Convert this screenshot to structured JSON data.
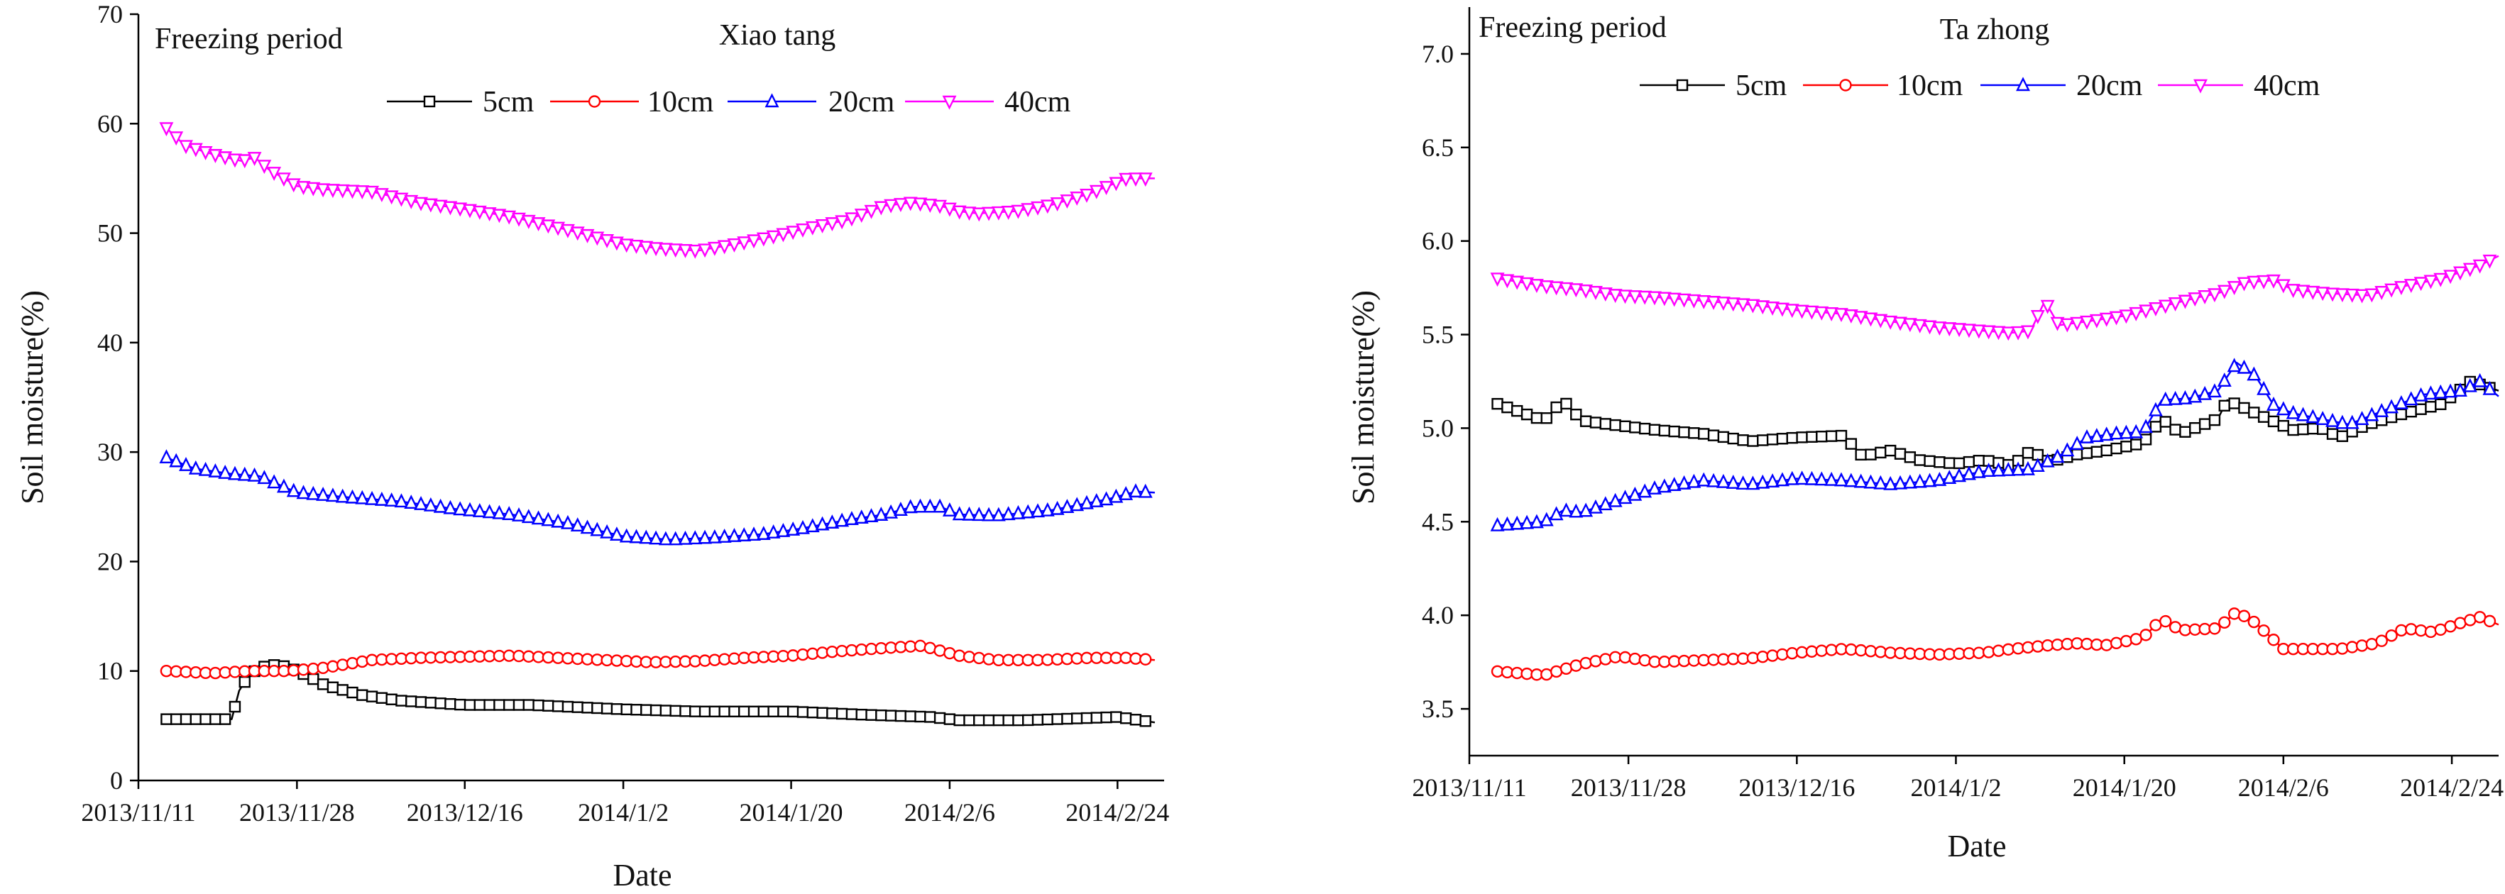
{
  "chart_data": [
    {
      "type": "line",
      "title": "Xiao tang",
      "annotation": "Freezing period",
      "xlabel": "Date",
      "ylabel": "Soil moisture(%)",
      "ylim": [
        0,
        70
      ],
      "yticks": [
        "0",
        "10",
        "20",
        "30",
        "40",
        "50",
        "60",
        "70"
      ],
      "xticks": [
        "2013/11/11",
        "2013/11/28",
        "2013/12/16",
        "2014/1/2",
        "2014/1/20",
        "2014/2/6",
        "2014/2/24"
      ],
      "xlim_days": [
        0,
        110
      ],
      "xtick_days": [
        0,
        17,
        35,
        52,
        70,
        87,
        105
      ],
      "grid": false,
      "legend": "top",
      "series": [
        {
          "name": "5cm",
          "color": "#000000",
          "marker": "square",
          "x_days": [
            3,
            7,
            10,
            10.8,
            12,
            14,
            16,
            18,
            20,
            24,
            28,
            35,
            42,
            52,
            60,
            70,
            78,
            85,
            88,
            95,
            105,
            109
          ],
          "values": [
            5.6,
            5.6,
            5.6,
            8.2,
            9.8,
            10.6,
            10.4,
            9.6,
            8.7,
            7.8,
            7.3,
            6.9,
            6.9,
            6.5,
            6.3,
            6.3,
            6.0,
            5.8,
            5.5,
            5.5,
            5.8,
            5.3
          ]
        },
        {
          "name": "10cm",
          "color": "#ff0000",
          "marker": "circle",
          "x_days": [
            3,
            8,
            12,
            16,
            20,
            25,
            30,
            35,
            40,
            45,
            50,
            55,
            60,
            65,
            70,
            75,
            80,
            84,
            88,
            92,
            97,
            102,
            106,
            109
          ],
          "values": [
            10.0,
            9.8,
            10.0,
            10.0,
            10.3,
            11.0,
            11.2,
            11.3,
            11.4,
            11.2,
            11.0,
            10.8,
            10.9,
            11.2,
            11.4,
            11.8,
            12.1,
            12.3,
            11.4,
            11.0,
            11.0,
            11.2,
            11.2,
            11.0
          ]
        },
        {
          "name": "20cm",
          "color": "#0000ff",
          "marker": "triangle-up",
          "x_days": [
            3,
            6,
            10,
            13,
            17,
            22,
            28,
            34,
            40,
            46,
            52,
            57,
            62,
            67,
            71,
            76,
            80,
            83,
            86,
            88,
            92,
            98,
            104,
            107,
            109
          ],
          "values": [
            29.5,
            28.5,
            28.0,
            27.8,
            26.3,
            25.9,
            25.5,
            24.8,
            24.3,
            23.5,
            22.3,
            22.0,
            22.2,
            22.5,
            23.0,
            23.8,
            24.3,
            25.0,
            25.0,
            24.3,
            24.2,
            24.7,
            25.7,
            26.4,
            26.3
          ]
        },
        {
          "name": "40cm",
          "color": "#ff00ff",
          "marker": "triangle-down",
          "x_days": [
            3,
            5,
            8,
            11,
            12.5,
            14,
            17,
            20,
            25,
            30,
            35,
            40,
            46,
            52,
            56,
            60,
            64,
            68,
            72,
            76,
            80,
            83,
            86,
            88,
            90,
            94,
            98,
            102,
            106,
            109
          ],
          "values": [
            59.6,
            58.0,
            57.2,
            56.6,
            56.9,
            55.8,
            54.3,
            54.0,
            53.8,
            52.8,
            52.2,
            51.5,
            50.3,
            49.0,
            48.6,
            48.4,
            49.0,
            49.7,
            50.5,
            51.2,
            52.5,
            52.8,
            52.5,
            52.0,
            51.8,
            52.0,
            52.6,
            53.6,
            55.0,
            55.0
          ]
        }
      ]
    },
    {
      "type": "line",
      "title": "Ta zhong",
      "annotation": "Freezing period",
      "xlabel": "Date",
      "ylabel": "Soil moisture(%)",
      "ylim": [
        3.25,
        7.25
      ],
      "yticks": [
        "3.5",
        "4.0",
        "4.5",
        "5.0",
        "5.5",
        "6.0",
        "6.5",
        "7.0"
      ],
      "ytick_values": [
        3.5,
        4.0,
        4.5,
        5.0,
        5.5,
        6.0,
        6.5,
        7.0
      ],
      "xticks": [
        "2013/11/11",
        "2013/11/28",
        "2013/12/16",
        "2014/1/2",
        "2014/1/20",
        "2014/2/6",
        "2014/2/24"
      ],
      "xlim_days": [
        0,
        110
      ],
      "xtick_days": [
        0,
        17,
        35,
        52,
        70,
        87,
        105
      ],
      "grid": false,
      "legend": "top",
      "series": [
        {
          "name": "5cm",
          "color": "#000000",
          "marker": "square",
          "x_days": [
            3,
            8,
            10,
            12,
            15,
            20,
            25,
            30,
            35,
            40,
            42,
            45,
            48,
            50,
            52,
            55,
            58,
            60,
            62,
            65,
            68,
            70,
            72,
            74,
            76,
            80,
            81,
            84,
            88,
            91,
            93,
            96,
            100,
            104,
            107,
            110
          ],
          "values": [
            5.13,
            5.04,
            5.15,
            5.04,
            5.02,
            4.99,
            4.97,
            4.93,
            4.95,
            4.96,
            4.85,
            4.88,
            4.83,
            4.82,
            4.81,
            4.83,
            4.8,
            4.88,
            4.82,
            4.86,
            4.88,
            4.9,
            4.92,
            5.05,
            4.97,
            5.05,
            5.15,
            5.08,
            4.99,
            5.0,
            4.95,
            5.02,
            5.08,
            5.13,
            5.25,
            5.2
          ]
        },
        {
          "name": "10cm",
          "color": "#ff0000",
          "marker": "circle",
          "x_days": [
            3,
            8,
            12,
            16,
            20,
            25,
            30,
            35,
            40,
            45,
            50,
            55,
            58,
            62,
            65,
            68,
            72,
            74,
            76,
            80,
            82,
            84,
            87,
            90,
            93,
            97,
            100,
            103,
            106,
            108,
            110
          ],
          "values": [
            3.7,
            3.68,
            3.74,
            3.78,
            3.75,
            3.76,
            3.77,
            3.8,
            3.82,
            3.8,
            3.79,
            3.8,
            3.82,
            3.84,
            3.85,
            3.84,
            3.88,
            3.98,
            3.92,
            3.93,
            4.02,
            3.96,
            3.82,
            3.82,
            3.82,
            3.85,
            3.93,
            3.91,
            3.96,
            3.99,
            3.95
          ]
        },
        {
          "name": "20cm",
          "color": "#0000ff",
          "marker": "triangle-up",
          "x_days": [
            3,
            8,
            10,
            12,
            15,
            20,
            25,
            30,
            35,
            40,
            45,
            50,
            55,
            60,
            63,
            66,
            69,
            72,
            74,
            77,
            80,
            82,
            84,
            86,
            88,
            91,
            94,
            98,
            102,
            106,
            108,
            110
          ],
          "values": [
            4.48,
            4.5,
            4.56,
            4.55,
            4.6,
            4.68,
            4.72,
            4.7,
            4.73,
            4.72,
            4.7,
            4.72,
            4.77,
            4.78,
            4.85,
            4.95,
            4.97,
            4.98,
            5.15,
            5.16,
            5.2,
            5.35,
            5.28,
            5.12,
            5.08,
            5.05,
            5.02,
            5.1,
            5.18,
            5.2,
            5.25,
            5.17
          ]
        },
        {
          "name": "40cm",
          "color": "#ff00ff",
          "marker": "triangle-down",
          "x_days": [
            3,
            8,
            12,
            16,
            20,
            25,
            30,
            35,
            40,
            45,
            50,
            55,
            58,
            60,
            61.5,
            63,
            66,
            70,
            74,
            78,
            80,
            83,
            86,
            88,
            92,
            96,
            100,
            104,
            108,
            110
          ],
          "values": [
            5.8,
            5.76,
            5.74,
            5.71,
            5.7,
            5.68,
            5.66,
            5.63,
            5.61,
            5.57,
            5.54,
            5.52,
            5.51,
            5.52,
            5.68,
            5.55,
            5.57,
            5.6,
            5.65,
            5.7,
            5.72,
            5.78,
            5.79,
            5.74,
            5.72,
            5.71,
            5.76,
            5.8,
            5.87,
            5.92
          ]
        }
      ]
    }
  ]
}
